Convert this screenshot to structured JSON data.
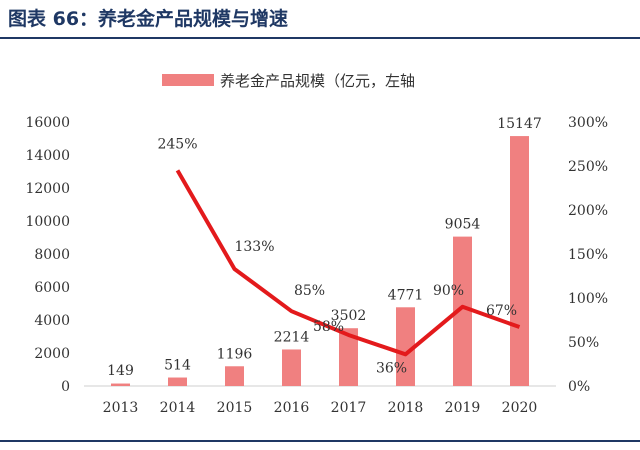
{
  "header": {
    "title": "图表 66：养老金产品规模与增速"
  },
  "chart_data": {
    "type": "bar",
    "categories": [
      "2013",
      "2014",
      "2015",
      "2016",
      "2017",
      "2018",
      "2019",
      "2020"
    ],
    "series": [
      {
        "name": "养老金产品规模（亿元，左轴",
        "type": "bar",
        "axis": "left",
        "values": [
          149,
          514,
          1196,
          2214,
          3502,
          4771,
          9054,
          15147
        ],
        "labels": [
          "149",
          "514",
          "1196",
          "2214",
          "3502",
          "4771",
          "9054",
          "15147"
        ],
        "color": "#f08080"
      },
      {
        "type": "line",
        "axis": "right",
        "values": [
          null,
          245,
          133,
          85,
          58,
          36,
          90,
          67
        ],
        "labels": [
          "",
          "245%",
          "133%",
          "85%",
          "58%",
          "36%",
          "90%",
          "67%"
        ],
        "color": "#e31a1c"
      }
    ],
    "left_axis": {
      "ylim": [
        0,
        16000
      ],
      "ticks": [
        "0",
        "2000",
        "4000",
        "6000",
        "8000",
        "10000",
        "12000",
        "14000",
        "16000"
      ]
    },
    "right_axis": {
      "ylim": [
        0,
        300
      ],
      "ticks": [
        "0%",
        "50%",
        "100%",
        "150%",
        "200%",
        "250%",
        "300%"
      ]
    },
    "legend": {
      "position": "top",
      "entries": [
        "养老金产品规模（亿元，左轴"
      ]
    },
    "grid": false
  }
}
